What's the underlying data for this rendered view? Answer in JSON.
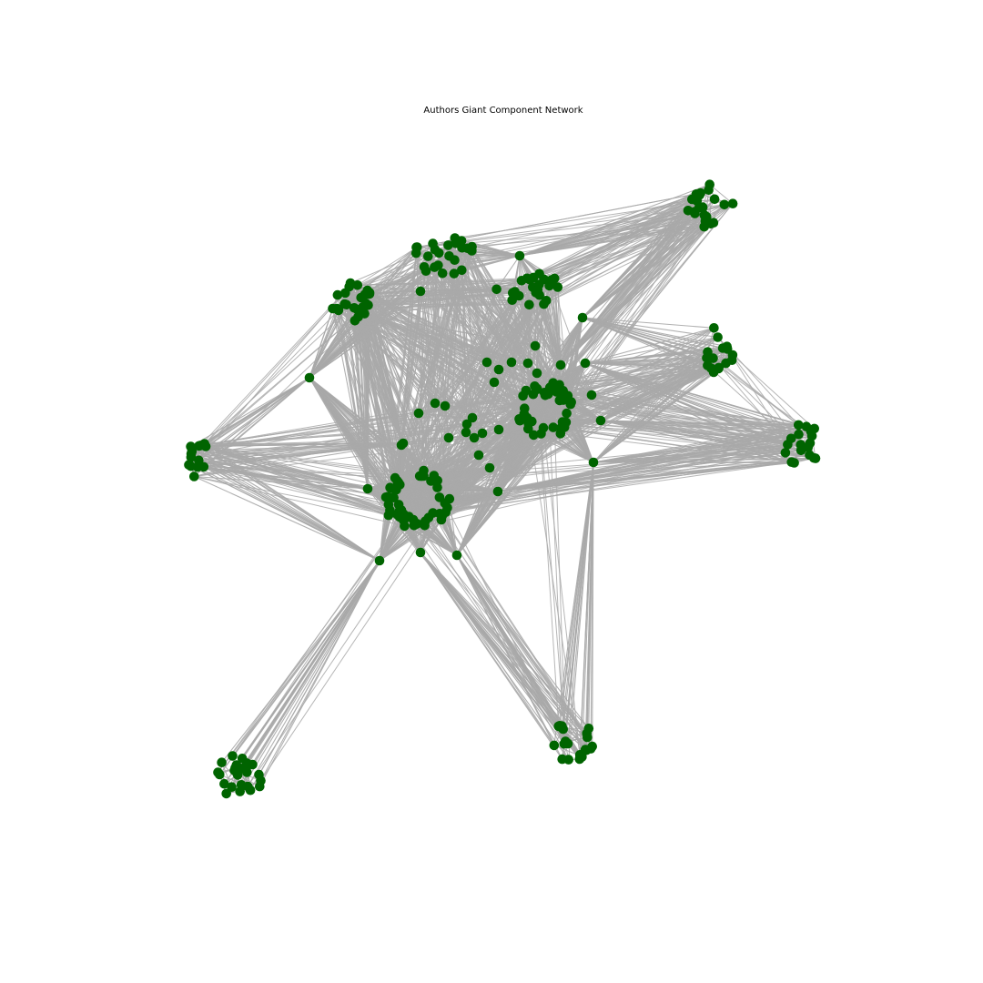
{
  "figure": {
    "title": "Authors Giant Component Network"
  },
  "style": {
    "node_color": "#006400",
    "edge_color": "#a9a9a9",
    "background": "#ffffff"
  },
  "network": {
    "layout": "force-directed",
    "node_shape": "circle",
    "clusters": [
      {
        "name": "top-right-cluster",
        "approx_nodes": 22
      },
      {
        "name": "top-center-cluster",
        "approx_nodes": 26
      },
      {
        "name": "top-left-cluster",
        "approx_nodes": 24
      },
      {
        "name": "upper-center-cluster",
        "approx_nodes": 24
      },
      {
        "name": "right-cluster",
        "approx_nodes": 16
      },
      {
        "name": "far-right-cluster",
        "approx_nodes": 18
      },
      {
        "name": "dense-center-right-cluster",
        "approx_nodes": 45
      },
      {
        "name": "dense-center-left-cluster",
        "approx_nodes": 50
      },
      {
        "name": "left-cluster",
        "approx_nodes": 14
      },
      {
        "name": "bottom-left-cluster",
        "approx_nodes": 24
      },
      {
        "name": "bottom-center-cluster",
        "approx_nodes": 22
      }
    ],
    "hubs": 14
  }
}
